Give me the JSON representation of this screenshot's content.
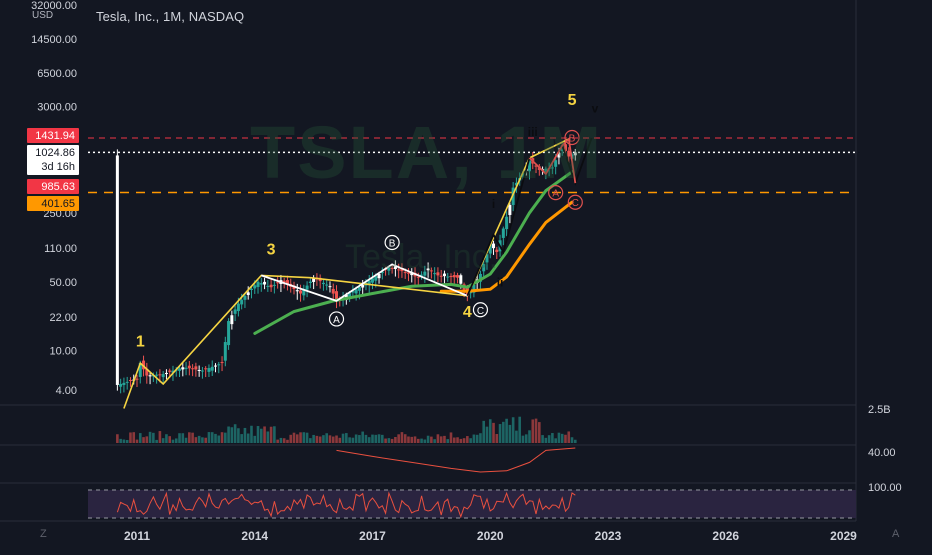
{
  "header": {
    "symbol_title": "Tesla, Inc., 1M, NASDAQ",
    "currency": "USD",
    "watermark": "TSLA, 1M",
    "watermark_sub": "Tesla, Inc."
  },
  "corner_labels": {
    "left": "Z",
    "right": "A"
  },
  "colors": {
    "background": "#131722",
    "up_candle": "#26a69a",
    "down_candle": "#ef5350",
    "candle_white": "#ffffff",
    "wave_line": "#f5d442",
    "ma_green": "#4caf50",
    "ma_orange": "#ff9800",
    "rsi_line": "#e9503f",
    "rsi_fill": "#2a2440",
    "level_red": "#f23645",
    "level_orange": "#ff9800"
  },
  "chart_data": [
    {
      "type": "candlestick",
      "title": "Tesla, Inc., 1M, NASDAQ",
      "yscale": "log",
      "ylim": [
        2.5,
        32000
      ],
      "x_ticks": [
        "2011",
        "2014",
        "2017",
        "2020",
        "2023",
        "2026",
        "2029"
      ],
      "y_ticks": [
        "32000.00",
        "14500.00",
        "6500.00",
        "3000.00",
        "1431.94",
        "1024.86",
        "985.63",
        "401.65",
        "250.00",
        "110.00",
        "50.00",
        "22.00",
        "10.00",
        "4.00"
      ],
      "price_badges": [
        {
          "label": "1431.94",
          "style": "red"
        },
        {
          "label": "1024.86",
          "sublabel": "3d 16h",
          "style": "white"
        },
        {
          "label": "985.63",
          "style": "red"
        },
        {
          "label": "401.65",
          "style": "orange"
        }
      ],
      "horizontal_levels": [
        {
          "value": 1431.94,
          "style": "red-dashed"
        },
        {
          "value": 1024.86,
          "style": "white-dotted"
        },
        {
          "value": 401.65,
          "style": "orange-dashed"
        }
      ],
      "price_path": [
        [
          "2010-07",
          4.5
        ],
        [
          "2011-01",
          5.2
        ],
        [
          "2011-02",
          7.5
        ],
        [
          "2011-04",
          5.6
        ],
        [
          "2011-09",
          5.8
        ],
        [
          "2012-03",
          6.8
        ],
        [
          "2012-09",
          6.3
        ],
        [
          "2013-03",
          7.5
        ],
        [
          "2013-05",
          20
        ],
        [
          "2013-08",
          30
        ],
        [
          "2013-10",
          36
        ],
        [
          "2014-02",
          50
        ],
        [
          "2014-06",
          44
        ],
        [
          "2014-09",
          52
        ],
        [
          "2015-03",
          38
        ],
        [
          "2015-07",
          55
        ],
        [
          "2015-12",
          45
        ],
        [
          "2016-02",
          32
        ],
        [
          "2016-08",
          42
        ],
        [
          "2017-03",
          60
        ],
        [
          "2017-06",
          70
        ],
        [
          "2017-09",
          66
        ],
        [
          "2018-03",
          55
        ],
        [
          "2018-06",
          68
        ],
        [
          "2018-09",
          58
        ],
        [
          "2019-03",
          55
        ],
        [
          "2019-06",
          36
        ],
        [
          "2019-10",
          60
        ],
        [
          "2020-01",
          120
        ],
        [
          "2020-03",
          100
        ],
        [
          "2020-07",
          300
        ],
        [
          "2020-08",
          450
        ],
        [
          "2020-12",
          700
        ],
        [
          "2021-01",
          850
        ],
        [
          "2021-04",
          680
        ],
        [
          "2021-08",
          720
        ],
        [
          "2021-11",
          1200
        ],
        [
          "2022-01",
          930
        ],
        [
          "2022-03",
          1024.86
        ]
      ],
      "series": [
        {
          "name": "MA green",
          "points": [
            [
              "2014-01",
              15
            ],
            [
              "2015-01",
              25
            ],
            [
              "2016-01",
              32
            ],
            [
              "2017-01",
              38
            ],
            [
              "2018-01",
              45
            ],
            [
              "2019-01",
              47
            ],
            [
              "2019-06",
              44
            ],
            [
              "2020-01",
              60
            ],
            [
              "2020-06",
              100
            ],
            [
              "2021-01",
              250
            ],
            [
              "2021-06",
              420
            ],
            [
              "2022-02",
              650
            ]
          ]
        },
        {
          "name": "MA orange",
          "points": [
            [
              "2018-10",
              40
            ],
            [
              "2019-06",
              40
            ],
            [
              "2020-01",
              42
            ],
            [
              "2020-06",
              56
            ],
            [
              "2021-01",
              120
            ],
            [
              "2021-06",
              200
            ],
            [
              "2022-02",
              320
            ]
          ]
        }
      ],
      "wave_lines": [
        {
          "color": "yellow",
          "points": [
            [
              "2010-09",
              2.6
            ],
            [
              "2011-02",
              7.5
            ],
            [
              "2011-09",
              4.6
            ],
            [
              "2014-03",
              58
            ],
            [
              "2015-06",
              55
            ],
            [
              "2019-06",
              36
            ],
            [
              "2021-01",
              900
            ],
            [
              "2022-01",
              1400
            ]
          ]
        },
        {
          "color": "white",
          "points": [
            [
              "2014-03",
              58
            ],
            [
              "2016-02",
              32
            ],
            [
              "2017-07",
              75
            ],
            [
              "2019-06",
              36
            ]
          ]
        },
        {
          "color": "black",
          "points": [
            [
              "2019-06",
              36
            ],
            [
              "2020-02",
              150
            ],
            [
              "2020-05",
              100
            ],
            [
              "2021-01",
              900
            ],
            [
              "2021-06",
              620
            ],
            [
              "2021-11",
              1200
            ],
            [
              "2022-03",
              500
            ],
            [
              "2022-08",
              1430
            ]
          ]
        },
        {
          "color": "red",
          "points": [
            [
              "2021-01",
              900
            ],
            [
              "2021-06",
              620
            ],
            [
              "2021-11",
              1200
            ],
            [
              "2022-01",
              1400
            ],
            [
              "2022-03",
              500
            ]
          ]
        }
      ],
      "annotations": [
        {
          "text": "1",
          "at": [
            "2011-02",
            11
          ],
          "style": "yellow"
        },
        {
          "text": "3",
          "at": [
            "2014-06",
            95
          ],
          "style": "yellow"
        },
        {
          "text": "4",
          "at": [
            "2019-06",
            22
          ],
          "style": "yellow"
        },
        {
          "text": "5",
          "at": [
            "2022-02",
            3100
          ],
          "style": "yellow"
        },
        {
          "text": "A",
          "at": [
            "2016-02",
            21
          ],
          "style": "circle-white"
        },
        {
          "text": "B",
          "at": [
            "2017-07",
            125
          ],
          "style": "circle-white"
        },
        {
          "text": "C",
          "at": [
            "2019-10",
            26
          ],
          "style": "circle-white"
        },
        {
          "text": "A",
          "at": [
            "2021-09",
            400
          ],
          "style": "circle-red"
        },
        {
          "text": "B",
          "at": [
            "2022-02",
            1450
          ],
          "style": "circle-red"
        },
        {
          "text": "C",
          "at": [
            "2022-03",
            320
          ],
          "style": "circle-red"
        },
        {
          "text": "i",
          "at": [
            "2020-02",
            280
          ],
          "style": "black"
        },
        {
          "text": "ii",
          "at": [
            "2020-04",
            45
          ],
          "style": "black"
        },
        {
          "text": "iii",
          "at": [
            "2021-02",
            1500
          ],
          "style": "black"
        },
        {
          "text": "v",
          "at": [
            "2022-09",
            2600
          ],
          "style": "black"
        }
      ]
    },
    {
      "type": "bar",
      "title": "Volume",
      "y_ticks": [
        "2.5B"
      ]
    },
    {
      "type": "line",
      "title": "Indicator",
      "y_ticks": [
        "40.00"
      ],
      "series": [
        {
          "points": [
            [
              "2016-02",
              60
            ],
            [
              "2017-01",
              55
            ],
            [
              "2018-01",
              50
            ],
            [
              "2019-01",
              45
            ],
            [
              "2019-10",
              42
            ],
            [
              "2020-06",
              43
            ],
            [
              "2021-01",
              50
            ],
            [
              "2021-06",
              60
            ],
            [
              "2022-03",
              62
            ]
          ]
        }
      ]
    },
    {
      "type": "line",
      "title": "RSI",
      "y_ticks": [
        "100.00"
      ],
      "band": [
        30,
        70
      ]
    }
  ]
}
